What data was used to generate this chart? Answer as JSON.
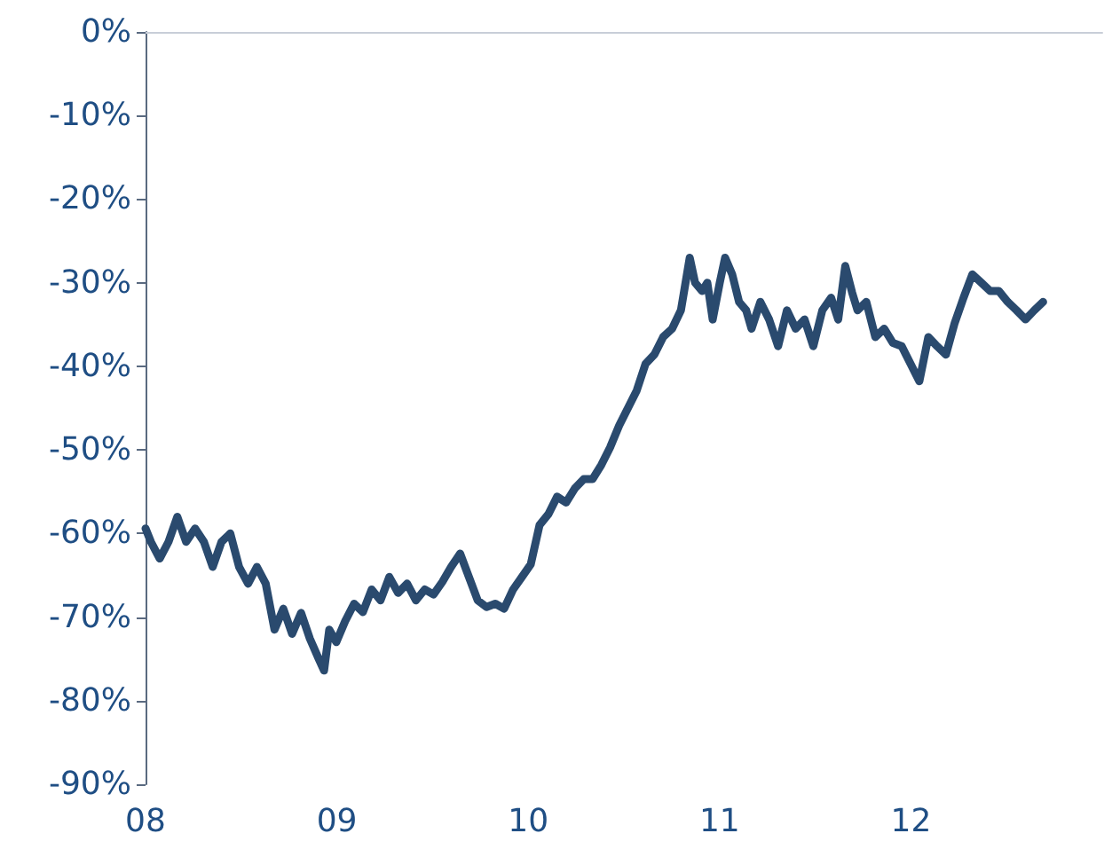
{
  "chart_data": {
    "type": "line",
    "xlim": [
      2008,
      2013
    ],
    "xticks": [
      {
        "value": 2008,
        "label": "08"
      },
      {
        "value": 2009,
        "label": "09"
      },
      {
        "value": 2010,
        "label": "10"
      },
      {
        "value": 2011,
        "label": "11"
      },
      {
        "value": 2012,
        "label": "12"
      }
    ],
    "ylim": [
      -90,
      0
    ],
    "yticks": [
      {
        "value": -90,
        "label": "-90%"
      },
      {
        "value": -80,
        "label": "-80%"
      },
      {
        "value": -70,
        "label": "-70%"
      },
      {
        "value": -60,
        "label": "-60%"
      },
      {
        "value": -50,
        "label": "-50%"
      },
      {
        "value": -40,
        "label": "-40%"
      },
      {
        "value": -30,
        "label": "-30%"
      },
      {
        "value": -20,
        "label": "-20%"
      },
      {
        "value": -10,
        "label": "-10%"
      },
      {
        "value": 0,
        "label": "0%"
      }
    ],
    "grid": false,
    "marker": "none",
    "line_style": "solid",
    "series": [
      {
        "color": "#2a4a6e",
        "x": [
          2008.0,
          2008.028,
          2008.074,
          2008.12,
          2008.166,
          2008.212,
          2008.259,
          2008.305,
          2008.351,
          2008.397,
          2008.443,
          2008.489,
          2008.536,
          2008.582,
          2008.628,
          2008.674,
          2008.72,
          2008.766,
          2008.813,
          2008.859,
          2008.905,
          2008.933,
          2008.96,
          2008.997,
          2009.043,
          2009.09,
          2009.136,
          2009.182,
          2009.228,
          2009.274,
          2009.32,
          2009.367,
          2009.413,
          2009.459,
          2009.505,
          2009.551,
          2009.597,
          2009.644,
          2009.69,
          2009.736,
          2009.782,
          2009.828,
          2009.874,
          2009.921,
          2009.967,
          2010.013,
          2010.059,
          2010.105,
          2010.151,
          2010.198,
          2010.244,
          2010.29,
          2010.336,
          2010.382,
          2010.428,
          2010.475,
          2010.521,
          2010.567,
          2010.613,
          2010.659,
          2010.705,
          2010.752,
          2010.798,
          2010.844,
          2010.872,
          2010.909,
          2010.936,
          2010.964,
          2011.001,
          2011.029,
          2011.066,
          2011.102,
          2011.139,
          2011.167,
          2011.213,
          2011.259,
          2011.306,
          2011.352,
          2011.398,
          2011.444,
          2011.49,
          2011.537,
          2011.583,
          2011.62,
          2011.657,
          2011.693,
          2011.721,
          2011.767,
          2011.814,
          2011.86,
          2011.906,
          2011.952,
          2011.998,
          2012.044,
          2012.091,
          2012.137,
          2012.183,
          2012.229,
          2012.275,
          2012.321,
          2012.368,
          2012.414,
          2012.46,
          2012.506,
          2012.552,
          2012.599,
          2012.645,
          2012.691
        ],
        "values": [
          -59.4,
          -61,
          -63,
          -61,
          -58,
          -61,
          -59.4,
          -61,
          -64,
          -61,
          -60,
          -64,
          -66,
          -64,
          -66,
          -71.5,
          -69,
          -72,
          -69.5,
          -72.6,
          -75,
          -76.4,
          -71.5,
          -73,
          -70.5,
          -68.4,
          -69.4,
          -66.7,
          -68,
          -65.2,
          -67.1,
          -66,
          -68,
          -66.7,
          -67.3,
          -65.8,
          -64,
          -62.4,
          -65.2,
          -68,
          -68.8,
          -68.4,
          -69,
          -66.7,
          -65.2,
          -63.7,
          -59,
          -57.7,
          -55.6,
          -56.3,
          -54.6,
          -53.5,
          -53.5,
          -51.8,
          -49.7,
          -47.1,
          -45,
          -42.9,
          -39.7,
          -38.6,
          -36.5,
          -35.5,
          -33.3,
          -27,
          -30,
          -31,
          -30,
          -34.4,
          -30,
          -27,
          -29,
          -32.3,
          -33.3,
          -35.5,
          -32.3,
          -34.4,
          -37.6,
          -33.3,
          -35.5,
          -34.4,
          -37.6,
          -33.3,
          -31.8,
          -34.4,
          -28,
          -31.2,
          -33.3,
          -32.3,
          -36.5,
          -35.5,
          -37.2,
          -37.6,
          -39.7,
          -41.8,
          -36.5,
          -37.6,
          -38.6,
          -34.8,
          -31.8,
          -29,
          -30,
          -31,
          -31,
          -32.3,
          -33.3,
          -34.4,
          -33.3,
          -32.3
        ]
      }
    ]
  }
}
